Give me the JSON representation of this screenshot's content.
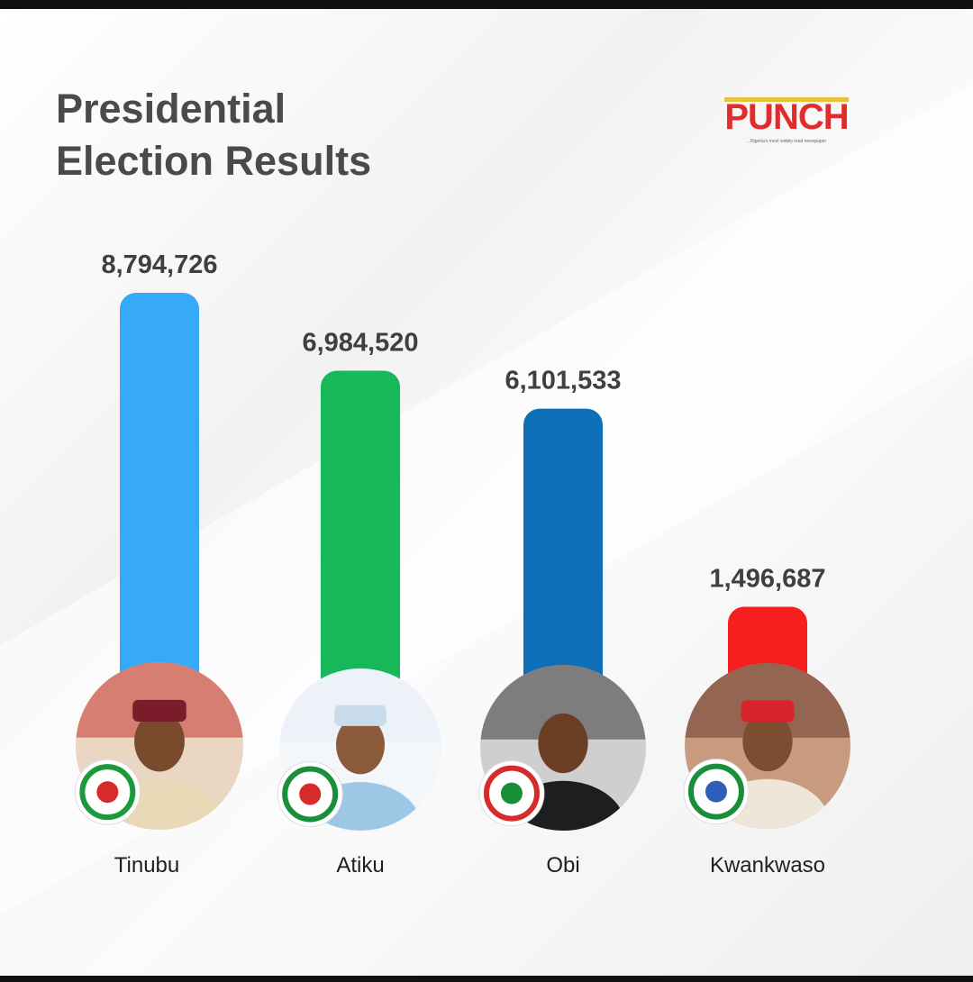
{
  "header": {
    "title_line1": "Presidential",
    "title_line2": "Election Results"
  },
  "brand": {
    "name": "PUNCH",
    "tagline": "...Nigeria's most widely read newspaper"
  },
  "chart_data": {
    "type": "bar",
    "title": "Presidential Election Results",
    "categories": [
      "Tinubu",
      "Atiku",
      "Obi",
      "Kwankwaso"
    ],
    "values": [
      8794726,
      6984520,
      6101533,
      1496687
    ],
    "value_labels": [
      "8,794,726",
      "6,984,520",
      "6,101,533",
      "1,496,687"
    ],
    "colors": [
      "#36a9f7",
      "#17b85a",
      "#0d6fb8",
      "#f51f1f"
    ],
    "party_logos": [
      "apc-logo",
      "pdp-logo",
      "lp-logo",
      "nnpp-logo"
    ],
    "xlabel": "",
    "ylabel": "",
    "grid": false,
    "legend": "none"
  }
}
